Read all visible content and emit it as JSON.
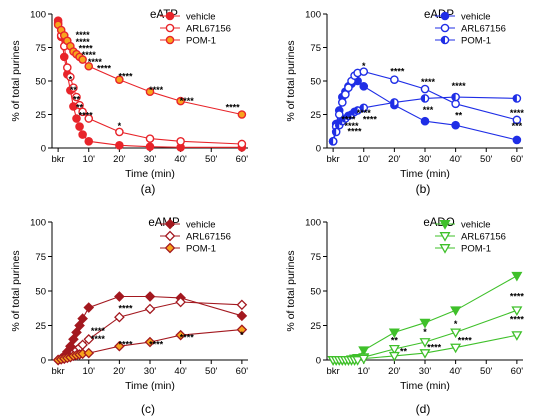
{
  "x_tick_labels": [
    "bkr",
    "10'",
    "20'",
    "30'",
    "40'",
    "50'",
    "60'"
  ],
  "y_tick_labels": [
    "0",
    "25",
    "50",
    "75",
    "100"
  ],
  "xlabel": "Time (min)",
  "ylabel": "% of total purines",
  "chart_data": [
    {
      "type": "line",
      "letter": "(a)",
      "title": "eATP",
      "xlabel": "Time (min)",
      "ylabel": "% of total purines",
      "xlim": [
        -2,
        62
      ],
      "ylim": [
        0,
        100
      ],
      "legend_position": "top-right",
      "series": [
        {
          "name": "vehicle",
          "color": "#e8242a",
          "marker": "circle",
          "fill": "filled",
          "x": [
            0,
            1,
            2,
            3,
            4,
            5,
            6,
            7,
            8,
            10,
            20,
            30,
            40,
            60
          ],
          "y": [
            95,
            83,
            68,
            55,
            43,
            31,
            22,
            16,
            10,
            5,
            2,
            1,
            0.5,
            0.5
          ]
        },
        {
          "name": "ARL67156",
          "color": "#e8242a",
          "marker": "circle",
          "fill": "open",
          "x": [
            0,
            1,
            2,
            3,
            4,
            5,
            6,
            7,
            8,
            10,
            20,
            30,
            40,
            60
          ],
          "y": [
            93,
            84,
            76,
            60,
            53,
            45,
            38,
            32,
            27,
            22,
            12,
            7,
            5,
            3
          ]
        },
        {
          "name": "POM-1",
          "color": "#e8242a",
          "marker": "circle",
          "fill": "orange",
          "fill_color": "#f7a51d",
          "x": [
            0,
            1,
            2,
            3,
            4,
            5,
            6,
            7,
            8,
            10,
            20,
            30,
            40,
            60
          ],
          "y": [
            92,
            88,
            84,
            80,
            76,
            72,
            70,
            68,
            66,
            61,
            51,
            42,
            35,
            25
          ]
        }
      ],
      "annotations": [
        {
          "x": 8,
          "y": 82,
          "text": "****"
        },
        {
          "x": 8,
          "y": 77,
          "text": "****"
        },
        {
          "x": 9,
          "y": 72,
          "text": "****"
        },
        {
          "x": 10,
          "y": 67,
          "text": "****"
        },
        {
          "x": 12,
          "y": 62,
          "text": "****"
        },
        {
          "x": 15,
          "y": 57,
          "text": "****"
        },
        {
          "x": 22,
          "y": 51,
          "text": "****"
        },
        {
          "x": 32,
          "y": 41,
          "text": "****"
        },
        {
          "x": 42,
          "y": 33,
          "text": "****"
        },
        {
          "x": 57,
          "y": 28,
          "text": "****"
        },
        {
          "x": 4,
          "y": 49,
          "text": "*"
        },
        {
          "x": 5,
          "y": 41,
          "text": "**"
        },
        {
          "x": 6,
          "y": 34,
          "text": "**"
        },
        {
          "x": 7,
          "y": 28,
          "text": "**"
        },
        {
          "x": 9,
          "y": 22,
          "text": "****"
        },
        {
          "x": 20,
          "y": 14,
          "text": "*"
        }
      ]
    },
    {
      "type": "line",
      "letter": "(b)",
      "title": "eADP",
      "xlabel": "Time (min)",
      "ylabel": "% of total purines",
      "xlim": [
        -2,
        62
      ],
      "ylim": [
        0,
        100
      ],
      "legend_position": "top-right",
      "series": [
        {
          "name": "vehicle",
          "color": "#1f2ee6",
          "marker": "circle",
          "fill": "filled",
          "x": [
            0,
            1,
            2,
            3,
            4,
            5,
            6,
            7,
            8,
            10,
            20,
            30,
            40,
            60
          ],
          "y": [
            5,
            18,
            28,
            38,
            42,
            46,
            48,
            51,
            50,
            46,
            32,
            20,
            17,
            6
          ]
        },
        {
          "name": "ARL67156",
          "color": "#1f2ee6",
          "marker": "circle",
          "fill": "open",
          "x": [
            0,
            1,
            2,
            3,
            4,
            5,
            6,
            7,
            8,
            10,
            20,
            30,
            40,
            60
          ],
          "y": [
            5,
            16,
            25,
            34,
            40,
            45,
            50,
            54,
            56,
            57,
            51,
            44,
            33,
            21
          ]
        },
        {
          "name": "POM-1",
          "color": "#1f2ee6",
          "marker": "circle",
          "fill": "half",
          "x": [
            0,
            1,
            2,
            3,
            4,
            5,
            6,
            7,
            8,
            10,
            20,
            30,
            40,
            60
          ],
          "y": [
            5,
            12,
            17,
            20,
            22,
            24,
            25,
            27,
            28,
            30,
            34,
            37,
            38,
            37
          ]
        }
      ],
      "annotations": [
        {
          "x": 10,
          "y": 59,
          "text": "*"
        },
        {
          "x": 21,
          "y": 55,
          "text": "****"
        },
        {
          "x": 31,
          "y": 47,
          "text": "****"
        },
        {
          "x": 41,
          "y": 44,
          "text": "****"
        },
        {
          "x": 31,
          "y": 26,
          "text": "***"
        },
        {
          "x": 41,
          "y": 22,
          "text": "**"
        },
        {
          "x": 60,
          "y": 24,
          "text": "****"
        },
        {
          "x": 60,
          "y": 14,
          "text": "***"
        },
        {
          "x": 5,
          "y": 19,
          "text": "****"
        },
        {
          "x": 6,
          "y": 14,
          "text": "****"
        },
        {
          "x": 7,
          "y": 10,
          "text": "****"
        },
        {
          "x": 10,
          "y": 24,
          "text": "****"
        },
        {
          "x": 12,
          "y": 19,
          "text": "****"
        }
      ]
    },
    {
      "type": "line",
      "letter": "(c)",
      "title": "eAMP",
      "xlabel": "Time (min)",
      "ylabel": "% of total purines",
      "xlim": [
        -2,
        62
      ],
      "ylim": [
        0,
        100
      ],
      "legend_position": "top-right",
      "series": [
        {
          "name": "vehicle",
          "color": "#a3181f",
          "marker": "diamond",
          "fill": "filled",
          "x": [
            0,
            1,
            2,
            3,
            4,
            5,
            6,
            7,
            8,
            10,
            20,
            30,
            40,
            60
          ],
          "y": [
            0,
            1,
            3,
            6,
            10,
            15,
            20,
            25,
            30,
            38,
            46,
            46,
            45,
            32
          ]
        },
        {
          "name": "ARL67156",
          "color": "#a3181f",
          "marker": "diamond",
          "fill": "open",
          "x": [
            0,
            1,
            2,
            3,
            4,
            5,
            6,
            7,
            8,
            10,
            20,
            30,
            40,
            60
          ],
          "y": [
            0,
            0.5,
            1,
            2,
            3,
            5,
            7,
            9,
            11,
            15,
            31,
            37,
            42,
            40
          ]
        },
        {
          "name": "POM-1",
          "color": "#a3181f",
          "marker": "diamond",
          "fill": "orange",
          "fill_color": "#f7a51d",
          "x": [
            0,
            1,
            2,
            3,
            4,
            5,
            6,
            7,
            8,
            10,
            20,
            30,
            40,
            60
          ],
          "y": [
            0,
            0.5,
            1,
            1.5,
            2,
            3,
            3.5,
            4,
            4.5,
            5,
            10,
            13,
            18,
            22
          ]
        }
      ],
      "annotations": [
        {
          "x": 22,
          "y": 35,
          "text": "****"
        },
        {
          "x": 13,
          "y": 19,
          "text": "****"
        },
        {
          "x": 13,
          "y": 13,
          "text": "****"
        },
        {
          "x": 22,
          "y": 9,
          "text": "****"
        },
        {
          "x": 32,
          "y": 9,
          "text": "****"
        },
        {
          "x": 42,
          "y": 14,
          "text": "****"
        },
        {
          "x": 60,
          "y": 16,
          "text": "*"
        }
      ]
    },
    {
      "type": "line",
      "letter": "(d)",
      "title": "eADO",
      "xlabel": "Time (min)",
      "ylabel": "% of total purines",
      "xlim": [
        -2,
        62
      ],
      "ylim": [
        0,
        100
      ],
      "legend_position": "top-right",
      "series": [
        {
          "name": "vehicle",
          "color": "#3fc02a",
          "marker": "triangle-down",
          "fill": "filled",
          "x": [
            0,
            1,
            2,
            3,
            4,
            5,
            6,
            7,
            8,
            10,
            20,
            30,
            40,
            60
          ],
          "y": [
            0,
            0,
            0,
            0,
            0,
            0,
            0.5,
            1,
            1.5,
            7,
            20,
            27,
            36,
            61
          ]
        },
        {
          "name": "ARL67156",
          "color": "#3fc02a",
          "marker": "triangle-down",
          "fill": "open",
          "x": [
            0,
            1,
            2,
            3,
            4,
            5,
            6,
            7,
            8,
            10,
            20,
            30,
            40,
            60
          ],
          "y": [
            0,
            0,
            0,
            0,
            0,
            0,
            0,
            0,
            0.5,
            2,
            8,
            13,
            20,
            36
          ]
        },
        {
          "name": "POM-1",
          "color": "#3fc02a",
          "marker": "triangle-down",
          "fill": "open",
          "x": [
            0,
            1,
            2,
            3,
            4,
            5,
            6,
            7,
            8,
            10,
            20,
            30,
            40,
            60
          ],
          "y": [
            0,
            0,
            0,
            0,
            0,
            0,
            0,
            0,
            0,
            1,
            3,
            5,
            9,
            18
          ]
        }
      ],
      "annotations": [
        {
          "x": 20,
          "y": 12,
          "text": "**"
        },
        {
          "x": 23,
          "y": 4,
          "text": "**"
        },
        {
          "x": 30,
          "y": 18,
          "text": "*"
        },
        {
          "x": 33,
          "y": 7,
          "text": "****"
        },
        {
          "x": 40,
          "y": 24,
          "text": "*"
        },
        {
          "x": 43,
          "y": 12,
          "text": "****"
        },
        {
          "x": 60,
          "y": 44,
          "text": "****"
        },
        {
          "x": 60,
          "y": 27,
          "text": "****"
        }
      ]
    }
  ]
}
